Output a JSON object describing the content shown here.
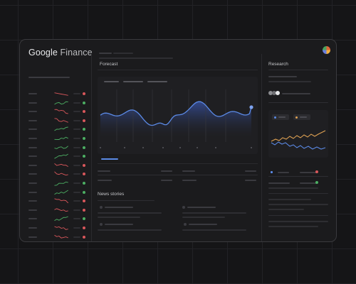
{
  "app": {
    "brand_google": "Google",
    "brand_product": "Finance"
  },
  "main": {
    "forecast_title": "Forecast",
    "news_title": "News stories"
  },
  "research": {
    "title": "Research"
  },
  "watchlist": {
    "trends": [
      "down",
      "up",
      "down",
      "down",
      "up",
      "up",
      "up",
      "up",
      "down",
      "down",
      "up",
      "up",
      "down",
      "down",
      "up",
      "down",
      "down"
    ]
  },
  "colors": {
    "accent_blue": "#5b8ae6",
    "up_green": "#4caf63",
    "down_red": "#d9575b",
    "series_orange": "#e0a253",
    "window_bg": "#1b1b1d"
  },
  "icons": {
    "avatar": "account-avatar-icon",
    "toggle": "view-toggle-icon"
  }
}
